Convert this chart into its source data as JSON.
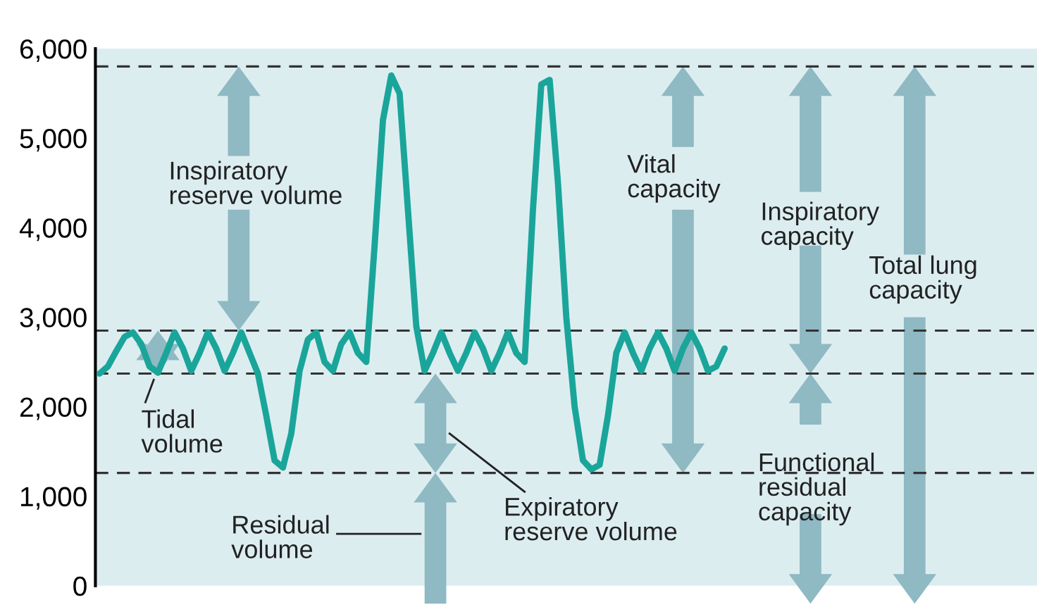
{
  "chart_data": {
    "type": "line",
    "categories": [
      null,
      null,
      null,
      null,
      null,
      null,
      null,
      null,
      null,
      null,
      null,
      null,
      null,
      null,
      null,
      null,
      null,
      null,
      null,
      null,
      null,
      null,
      null,
      null,
      null,
      null,
      null,
      null,
      null,
      null,
      null,
      null,
      null,
      null,
      null,
      null,
      null,
      null,
      null,
      null,
      null,
      null,
      null,
      null,
      null,
      null,
      null,
      null,
      null,
      null,
      null,
      null,
      null,
      null,
      null,
      null,
      null,
      null,
      null,
      null,
      null,
      null,
      null,
      null,
      null,
      null,
      null,
      null,
      null,
      null,
      null,
      null,
      null,
      null,
      null,
      null
    ],
    "values": [
      2370,
      2450,
      2620,
      2780,
      2830,
      2700,
      2450,
      2380,
      2600,
      2830,
      2650,
      2400,
      2600,
      2830,
      2650,
      2400,
      2600,
      2830,
      2600,
      2370,
      1900,
      1400,
      1320,
      1700,
      2400,
      2750,
      2830,
      2500,
      2400,
      2700,
      2830,
      2600,
      2500,
      3800,
      5200,
      5700,
      5500,
      4200,
      2900,
      2400,
      2600,
      2830,
      2600,
      2400,
      2600,
      2830,
      2650,
      2400,
      2600,
      2830,
      2600,
      2500,
      4200,
      5600,
      5650,
      4500,
      3000,
      2000,
      1400,
      1300,
      1350,
      1900,
      2600,
      2830,
      2600,
      2400,
      2650,
      2830,
      2650,
      2400,
      2650,
      2830,
      2650,
      2400,
      2450,
      2650
    ],
    "color": "#1aa59a",
    "ylim": [
      0,
      6000
    ],
    "yticks": [
      0,
      {
        "value": 1000,
        "label": "1,000"
      },
      {
        "value": 2000,
        "label": "2,000"
      },
      {
        "value": 3000,
        "label": "3,000"
      },
      {
        "value": 4000,
        "label": "4,000"
      },
      {
        "value": 5000,
        "label": "5,000"
      },
      {
        "value": 6000,
        "label": "6,000"
      }
    ],
    "tick_labels": "y",
    "grid": false,
    "ref_lines": [
      {
        "axis": "y",
        "value": 5800,
        "line_style": "dashed",
        "color": "#333333"
      },
      {
        "axis": "y",
        "value": 2850,
        "line_style": "dashed",
        "color": "#333333"
      },
      {
        "axis": "y",
        "value": 2370,
        "line_style": "dashed",
        "color": "#333333"
      },
      {
        "axis": "y",
        "value": 1260,
        "line_style": "dashed",
        "color": "#333333"
      }
    ],
    "annotations": [
      "Inspiratory\nreserve volume",
      "Tidal\nvolume",
      "Residual\nvolume",
      "Expiratory\nreserve volume",
      "Vital\ncapacity",
      "Inspiratory\ncapacity",
      "Total lung\ncapacity",
      "Functional\nresidual\ncapacity"
    ]
  }
}
